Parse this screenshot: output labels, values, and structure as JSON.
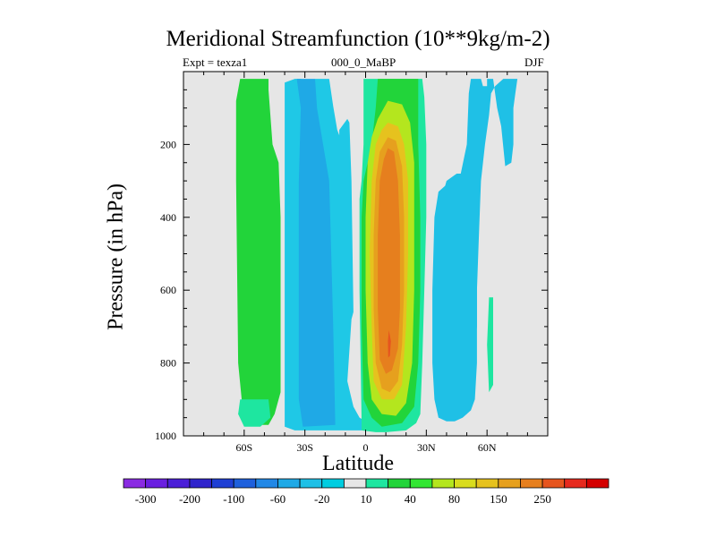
{
  "chart_data": {
    "type": "heatmap",
    "title": "Meridional Streamfunction (10**9kg/m-2)",
    "left_label": "Expt = texza1",
    "center_label": "000_0_MaBP",
    "right_label": "DJF",
    "xlabel": "Latitude",
    "ylabel": "Pressure (in hPa)",
    "xlim": [
      -90,
      90
    ],
    "ylim": [
      0,
      1000
    ],
    "x_ticks": [
      {
        "value": -60,
        "label": "60S"
      },
      {
        "value": -30,
        "label": "30S"
      },
      {
        "value": 0,
        "label": "0"
      },
      {
        "value": 30,
        "label": "30N"
      },
      {
        "value": 60,
        "label": "60N"
      }
    ],
    "y_ticks": [
      200,
      400,
      600,
      800,
      1000
    ],
    "colorbar": {
      "colors": [
        "#8a2be2",
        "#6a1fe0",
        "#4b1fd8",
        "#2f24cc",
        "#1f3fd4",
        "#1e60dc",
        "#2288e6",
        "#1fa9e6",
        "#1fc0e6",
        "#00cde0",
        "#e6e6e6",
        "#1ee6a0",
        "#22d43a",
        "#33e633",
        "#b4e61e",
        "#d9dc1e",
        "#e6c21e",
        "#e6a01e",
        "#e67f1e",
        "#e6551e",
        "#e62a1e",
        "#d40000"
      ],
      "labels": [
        "-300",
        "-200",
        "-100",
        "-60",
        "-20",
        "10",
        "40",
        "80",
        "150",
        "250"
      ]
    },
    "regions": [
      {
        "color": "#1fc8e6",
        "poly": [
          [
            -35,
            20
          ],
          [
            -32,
            20
          ],
          [
            -31,
            50
          ],
          [
            -29,
            60
          ],
          [
            -26,
            30
          ],
          [
            -25,
            20
          ],
          [
            -18,
            20
          ],
          [
            -16,
            95
          ],
          [
            -14,
            160
          ],
          [
            -13,
            175
          ],
          [
            -13,
            160
          ],
          [
            -9,
            130
          ],
          [
            -8,
            140
          ],
          [
            -7,
            300
          ],
          [
            -6,
            660
          ],
          [
            -7,
            680
          ],
          [
            -9,
            850
          ],
          [
            -6,
            920
          ],
          [
            -3,
            950
          ],
          [
            0,
            960
          ],
          [
            -2,
            985
          ],
          [
            -35,
            985
          ],
          [
            -40,
            975
          ],
          [
            -40,
            30
          ]
        ]
      },
      {
        "color": "#1fa9e6",
        "poly": [
          [
            -34,
            20
          ],
          [
            -25,
            20
          ],
          [
            -24,
            100
          ],
          [
            -21,
            200
          ],
          [
            -18,
            300
          ],
          [
            -17,
            500
          ],
          [
            -16,
            700
          ],
          [
            -15,
            970
          ],
          [
            -31,
            975
          ],
          [
            -33,
            900
          ],
          [
            -33,
            300
          ],
          [
            -32,
            100
          ]
        ]
      },
      {
        "color": "#22d43a",
        "poly": [
          [
            -62,
            20
          ],
          [
            -48,
            20
          ],
          [
            -48,
            50
          ],
          [
            -46,
            200
          ],
          [
            -43,
            250
          ],
          [
            -42,
            400
          ],
          [
            -42,
            880
          ],
          [
            -45,
            940
          ],
          [
            -48,
            970
          ],
          [
            -60,
            970
          ],
          [
            -63,
            800
          ],
          [
            -64,
            300
          ],
          [
            -64,
            80
          ]
        ]
      },
      {
        "color": "#1ee6a0",
        "poly": [
          [
            -62,
            900
          ],
          [
            -48,
            900
          ],
          [
            -47,
            950
          ],
          [
            -52,
            975
          ],
          [
            -60,
            975
          ],
          [
            -63,
            940
          ]
        ]
      },
      {
        "color": "#1ee6a0",
        "poly": [
          [
            -1,
            20
          ],
          [
            6,
            20
          ],
          [
            12,
            20
          ],
          [
            28,
            20
          ],
          [
            29,
            70
          ],
          [
            30,
            200
          ],
          [
            30,
            400
          ],
          [
            29,
            600
          ],
          [
            28,
            800
          ],
          [
            27,
            940
          ],
          [
            25,
            965
          ],
          [
            20,
            985
          ],
          [
            10,
            990
          ],
          [
            5,
            990
          ],
          [
            -2,
            985
          ],
          [
            -2,
            960
          ],
          [
            -3,
            600
          ],
          [
            -3,
            350
          ],
          [
            -2,
            300
          ],
          [
            -1,
            200
          ]
        ]
      },
      {
        "color": "#22d43a",
        "poly": [
          [
            6,
            20
          ],
          [
            26,
            20
          ],
          [
            26,
            200
          ],
          [
            27,
            400
          ],
          [
            27,
            600
          ],
          [
            26,
            800
          ],
          [
            24,
            920
          ],
          [
            18,
            965
          ],
          [
            8,
            975
          ],
          [
            3,
            950
          ],
          [
            -1,
            900
          ],
          [
            -2,
            700
          ],
          [
            -2,
            400
          ],
          [
            -1,
            300
          ],
          [
            1,
            250
          ],
          [
            3,
            200
          ],
          [
            4,
            150
          ],
          [
            5,
            100
          ]
        ]
      },
      {
        "color": "#b4e61e",
        "poly": [
          [
            11,
            80
          ],
          [
            18,
            90
          ],
          [
            22,
            140
          ],
          [
            24,
            250
          ],
          [
            24,
            400
          ],
          [
            24,
            600
          ],
          [
            23,
            800
          ],
          [
            20,
            910
          ],
          [
            15,
            945
          ],
          [
            8,
            940
          ],
          [
            3,
            900
          ],
          [
            1,
            800
          ],
          [
            0,
            600
          ],
          [
            0,
            400
          ],
          [
            1,
            250
          ],
          [
            3,
            180
          ],
          [
            6,
            130
          ]
        ]
      },
      {
        "color": "#e6c21e",
        "poly": [
          [
            11,
            140
          ],
          [
            16,
            150
          ],
          [
            19,
            200
          ],
          [
            21,
            300
          ],
          [
            21,
            500
          ],
          [
            20,
            700
          ],
          [
            18,
            860
          ],
          [
            14,
            900
          ],
          [
            8,
            900
          ],
          [
            4,
            850
          ],
          [
            3,
            700
          ],
          [
            2,
            500
          ],
          [
            3,
            300
          ],
          [
            5,
            200
          ],
          [
            8,
            160
          ]
        ]
      },
      {
        "color": "#e6a01e",
        "poly": [
          [
            11,
            180
          ],
          [
            15,
            190
          ],
          [
            18,
            260
          ],
          [
            19,
            400
          ],
          [
            19,
            600
          ],
          [
            18,
            750
          ],
          [
            16,
            850
          ],
          [
            12,
            880
          ],
          [
            8,
            870
          ],
          [
            5,
            800
          ],
          [
            4,
            650
          ],
          [
            4,
            450
          ],
          [
            5,
            300
          ],
          [
            7,
            220
          ]
        ]
      },
      {
        "color": "#e67f1e",
        "poly": [
          [
            11,
            210
          ],
          [
            14,
            220
          ],
          [
            16,
            300
          ],
          [
            17,
            450
          ],
          [
            17,
            650
          ],
          [
            16,
            760
          ],
          [
            13,
            820
          ],
          [
            10,
            830
          ],
          [
            7,
            790
          ],
          [
            6,
            650
          ],
          [
            6,
            450
          ],
          [
            7,
            300
          ],
          [
            9,
            240
          ]
        ]
      },
      {
        "color": "#e6551e",
        "poly": [
          [
            11.5,
            710
          ],
          [
            12.5,
            740
          ],
          [
            12,
            780
          ],
          [
            11.2,
            785
          ],
          [
            11,
            740
          ]
        ]
      },
      {
        "color": "#1fc0e6",
        "poly": [
          [
            40,
            300
          ],
          [
            45,
            280
          ],
          [
            50,
            280
          ],
          [
            52,
            300
          ],
          [
            54,
            350
          ],
          [
            55,
            500
          ],
          [
            55,
            700
          ],
          [
            53,
            800
          ],
          [
            52,
            900
          ],
          [
            50,
            940
          ],
          [
            44,
            930
          ],
          [
            42,
            920
          ],
          [
            38,
            900
          ],
          [
            36,
            700
          ],
          [
            35,
            400
          ]
        ]
      },
      {
        "color": "#1fa9e6",
        "poly": [
          [
            42,
            300
          ],
          [
            46,
            300
          ],
          [
            48,
            350
          ],
          [
            49,
            500
          ],
          [
            49,
            750
          ],
          [
            48,
            850
          ],
          [
            46,
            880
          ],
          [
            43,
            880
          ],
          [
            41,
            800
          ],
          [
            40,
            600
          ],
          [
            40,
            400
          ]
        ]
      },
      {
        "color": "#1fc0e6",
        "poly": [
          [
            68,
            20
          ],
          [
            75,
            20
          ],
          [
            74,
            60
          ],
          [
            73,
            100
          ],
          [
            73,
            200
          ],
          [
            72,
            250
          ],
          [
            69,
            260
          ],
          [
            67,
            150
          ],
          [
            65,
            100
          ],
          [
            64,
            60
          ],
          [
            63,
            20
          ],
          [
            60,
            20
          ],
          [
            60,
            40
          ],
          [
            58,
            40
          ],
          [
            57,
            20
          ],
          [
            52,
            20
          ],
          [
            51,
            60
          ],
          [
            50,
            200
          ],
          [
            47,
            280
          ],
          [
            42,
            300
          ],
          [
            36,
            330
          ],
          [
            34,
            400
          ],
          [
            33,
            600
          ],
          [
            33,
            800
          ],
          [
            34,
            900
          ],
          [
            36,
            950
          ],
          [
            40,
            960
          ],
          [
            44,
            960
          ],
          [
            48,
            950
          ],
          [
            52,
            930
          ],
          [
            54,
            900
          ],
          [
            55,
            800
          ],
          [
            55,
            600
          ],
          [
            56,
            450
          ],
          [
            57,
            300
          ],
          [
            59,
            200
          ],
          [
            61,
            120
          ],
          [
            62,
            60
          ],
          [
            64,
            40
          ],
          [
            66,
            30
          ]
        ]
      },
      {
        "color": "#1ee6a0",
        "poly": [
          [
            61,
            620
          ],
          [
            63,
            620
          ],
          [
            63,
            860
          ],
          [
            61,
            880
          ],
          [
            60,
            750
          ]
        ]
      }
    ]
  }
}
